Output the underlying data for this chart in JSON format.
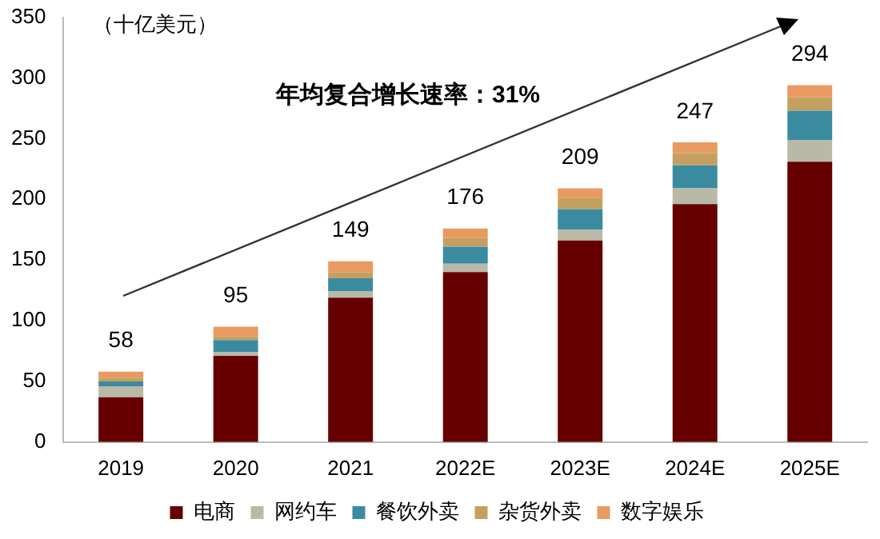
{
  "chart_data": {
    "type": "bar",
    "stacked": true,
    "categories": [
      "2019",
      "2020",
      "2021",
      "2022E",
      "2023E",
      "2024E",
      "2025E"
    ],
    "series": [
      {
        "name": "电商",
        "color": "#660000",
        "values": [
          37,
          71,
          119,
          140,
          166,
          196,
          231
        ]
      },
      {
        "name": "网约车",
        "color": "#b9b9a8",
        "values": [
          9,
          3,
          5,
          7,
          9,
          13,
          18
        ]
      },
      {
        "name": "餐饮外卖",
        "color": "#3b8ba0",
        "values": [
          4,
          10,
          11,
          14,
          17,
          19,
          24
        ]
      },
      {
        "name": "杂货外卖",
        "color": "#c4a060",
        "values": [
          3,
          3,
          5,
          7,
          9,
          10,
          11
        ]
      },
      {
        "name": "数字娱乐",
        "color": "#e89a60",
        "values": [
          5,
          8,
          9,
          8,
          8,
          9,
          10
        ]
      }
    ],
    "totals": [
      "58",
      "95",
      "149",
      "176",
      "209",
      "247",
      "294"
    ],
    "ylim": [
      0,
      350
    ],
    "yticks": [
      0,
      50,
      100,
      150,
      200,
      250,
      300,
      350
    ],
    "grid": false,
    "legend": "bottom",
    "annotations": [
      "（十亿美元）",
      "年均复合增长速率：31%"
    ]
  }
}
